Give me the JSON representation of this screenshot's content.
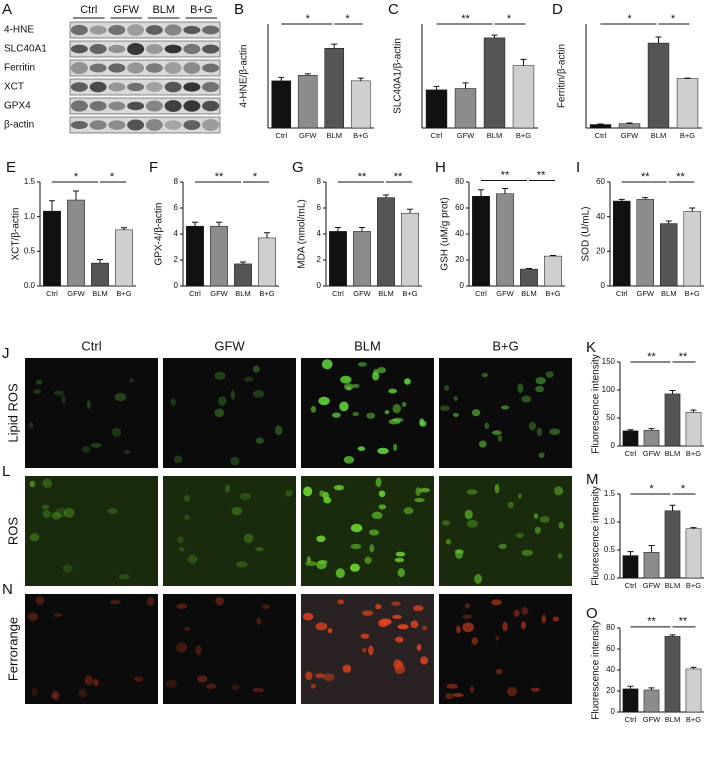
{
  "blot": {
    "panel": "A",
    "groups": [
      "Ctrl",
      "GFW",
      "BLM",
      "B+G"
    ],
    "proteins": [
      "4-HNE",
      "SLC40A1",
      "Ferritin",
      "XCT",
      "GPX4",
      "β-actin"
    ]
  },
  "images": {
    "columns": [
      "Ctrl",
      "GFW",
      "BLM",
      "B+G"
    ],
    "rows": [
      {
        "panel": "J",
        "label": "Lipid ROS",
        "color": "#5fd23a"
      },
      {
        "panel": "L",
        "label": "ROS",
        "color": "#6ad22c"
      },
      {
        "panel": "N",
        "label": "Ferrorange",
        "color": "#e0421e"
      }
    ]
  },
  "chart_data": [
    {
      "type": "bar",
      "panel": "B",
      "ylabel": "4-HNE/β-actin",
      "categories": [
        "Ctrl",
        "GFW",
        "BLM",
        "B+G"
      ],
      "values": [
        0.68,
        0.76,
        1.15,
        0.68
      ],
      "errors": [
        0.05,
        0.02,
        0.06,
        0.04
      ],
      "colors": [
        "#111111",
        "#8c8c8c",
        "#555555",
        "#cfcfcf"
      ],
      "ylim": [
        0,
        1.5
      ],
      "significance": [
        "*",
        "*"
      ]
    },
    {
      "type": "bar",
      "panel": "C",
      "ylabel": "SLC40A1/β-actin",
      "categories": [
        "Ctrl",
        "GFW",
        "BLM",
        "B+G"
      ],
      "values": [
        0.55,
        0.57,
        1.3,
        0.9
      ],
      "errors": [
        0.05,
        0.08,
        0.04,
        0.09
      ],
      "colors": [
        "#111111",
        "#8c8c8c",
        "#555555",
        "#cfcfcf"
      ],
      "ylim": [
        0,
        1.5
      ],
      "significance": [
        "**",
        "*"
      ]
    },
    {
      "type": "bar",
      "panel": "D",
      "ylabel": "Ferritin/β-actin",
      "categories": [
        "Ctrl",
        "GFW",
        "BLM",
        "B+G"
      ],
      "values": [
        0.2,
        0.25,
        4.9,
        2.85
      ],
      "errors": [
        0.03,
        0.04,
        0.35,
        0.03
      ],
      "colors": [
        "#111111",
        "#8c8c8c",
        "#555555",
        "#cfcfcf"
      ],
      "ylim": [
        0,
        6
      ],
      "significance": [
        "*",
        "*"
      ]
    },
    {
      "type": "bar",
      "panel": "E",
      "ylabel": "XCT/β-actin",
      "categories": [
        "Ctrl",
        "GFW",
        "BLM",
        "B+G"
      ],
      "values": [
        1.08,
        1.24,
        0.33,
        0.81
      ],
      "errors": [
        0.15,
        0.13,
        0.05,
        0.03
      ],
      "colors": [
        "#111111",
        "#8c8c8c",
        "#555555",
        "#cfcfcf"
      ],
      "ylim": [
        0,
        1.5
      ],
      "yticks": [
        {
          "value": 0,
          "label": "0.0"
        },
        {
          "value": 0.5,
          "label": "0.5"
        },
        {
          "value": 1,
          "label": "1.0"
        },
        {
          "value": 1.5,
          "label": "1.5"
        }
      ],
      "significance": [
        "*",
        "*"
      ]
    },
    {
      "type": "bar",
      "panel": "F",
      "ylabel": "GPX-4/β-actin",
      "categories": [
        "Ctrl",
        "GFW",
        "BLM",
        "B+G"
      ],
      "values": [
        4.6,
        4.6,
        1.7,
        3.7
      ],
      "errors": [
        0.3,
        0.3,
        0.15,
        0.4
      ],
      "colors": [
        "#111111",
        "#8c8c8c",
        "#555555",
        "#cfcfcf"
      ],
      "ylim": [
        0,
        8
      ],
      "yticks": [
        0,
        2,
        4,
        6,
        8
      ],
      "significance": [
        "**",
        "*"
      ]
    },
    {
      "type": "bar",
      "panel": "G",
      "ylabel": "MDA (nmol/mL)",
      "categories": [
        "Ctrl",
        "GFW",
        "BLM",
        "B+G"
      ],
      "values": [
        4.2,
        4.2,
        6.8,
        5.6
      ],
      "errors": [
        0.3,
        0.3,
        0.2,
        0.3
      ],
      "colors": [
        "#111111",
        "#8c8c8c",
        "#555555",
        "#cfcfcf"
      ],
      "ylim": [
        0,
        8
      ],
      "yticks": [
        0,
        2,
        4,
        6,
        8
      ],
      "significance": [
        "**",
        "**"
      ]
    },
    {
      "type": "bar",
      "panel": "H",
      "ylabel": "GSH (uM/g prot)",
      "categories": [
        "Ctrl",
        "GFW",
        "BLM",
        "B+G"
      ],
      "values": [
        69,
        71,
        13,
        23
      ],
      "errors": [
        5,
        4,
        0.5,
        0.5
      ],
      "colors": [
        "#111111",
        "#8c8c8c",
        "#555555",
        "#cfcfcf"
      ],
      "ylim": [
        0,
        80
      ],
      "yticks": [
        0,
        20,
        40,
        60,
        80
      ],
      "significance": [
        "**",
        "**"
      ]
    },
    {
      "type": "bar",
      "panel": "I",
      "ylabel": "SOD (U/mL)",
      "categories": [
        "Ctrl",
        "GFW",
        "BLM",
        "B+G"
      ],
      "values": [
        49,
        50,
        36,
        43
      ],
      "errors": [
        1,
        1,
        1.5,
        2
      ],
      "colors": [
        "#111111",
        "#8c8c8c",
        "#555555",
        "#cfcfcf"
      ],
      "ylim": [
        0,
        60
      ],
      "yticks": [
        0,
        20,
        40,
        60
      ],
      "significance": [
        "**",
        "**"
      ]
    },
    {
      "type": "bar",
      "panel": "K",
      "ylabel": "Fluorescence intensity",
      "categories": [
        "Ctrl",
        "GFW",
        "BLM",
        "B+G"
      ],
      "values": [
        27,
        28,
        93,
        60
      ],
      "errors": [
        2,
        3,
        6,
        4
      ],
      "colors": [
        "#111111",
        "#8c8c8c",
        "#555555",
        "#cfcfcf"
      ],
      "ylim": [
        0,
        150
      ],
      "yticks": [
        0,
        50,
        100,
        150
      ],
      "significance": [
        "**",
        "**"
      ]
    },
    {
      "type": "bar",
      "panel": "M",
      "ylabel": "Fluorescence intensity",
      "categories": [
        "Ctrl",
        "GFW",
        "BLM",
        "B+G"
      ],
      "values": [
        0.4,
        0.46,
        1.2,
        0.88
      ],
      "errors": [
        0.07,
        0.12,
        0.1,
        0.02
      ],
      "colors": [
        "#111111",
        "#8c8c8c",
        "#555555",
        "#cfcfcf"
      ],
      "ylim": [
        0,
        1.5
      ],
      "yticks": [
        {
          "value": 0,
          "label": "0.0"
        },
        {
          "value": 0.5,
          "label": "0.5"
        },
        {
          "value": 1,
          "label": "1.0"
        },
        {
          "value": 1.5,
          "label": "1.5"
        }
      ],
      "significance": [
        "*",
        "*"
      ]
    },
    {
      "type": "bar",
      "panel": "O",
      "ylabel": "Fluorescence intensity",
      "categories": [
        "Ctrl",
        "GFW",
        "BLM",
        "B+G"
      ],
      "values": [
        22,
        21,
        72,
        41
      ],
      "errors": [
        2.5,
        2,
        1.5,
        1.5
      ],
      "colors": [
        "#111111",
        "#8c8c8c",
        "#555555",
        "#cfcfcf"
      ],
      "ylim": [
        0,
        80
      ],
      "yticks": [
        0,
        20,
        40,
        60,
        80
      ],
      "significance": [
        "**",
        "**"
      ]
    }
  ]
}
